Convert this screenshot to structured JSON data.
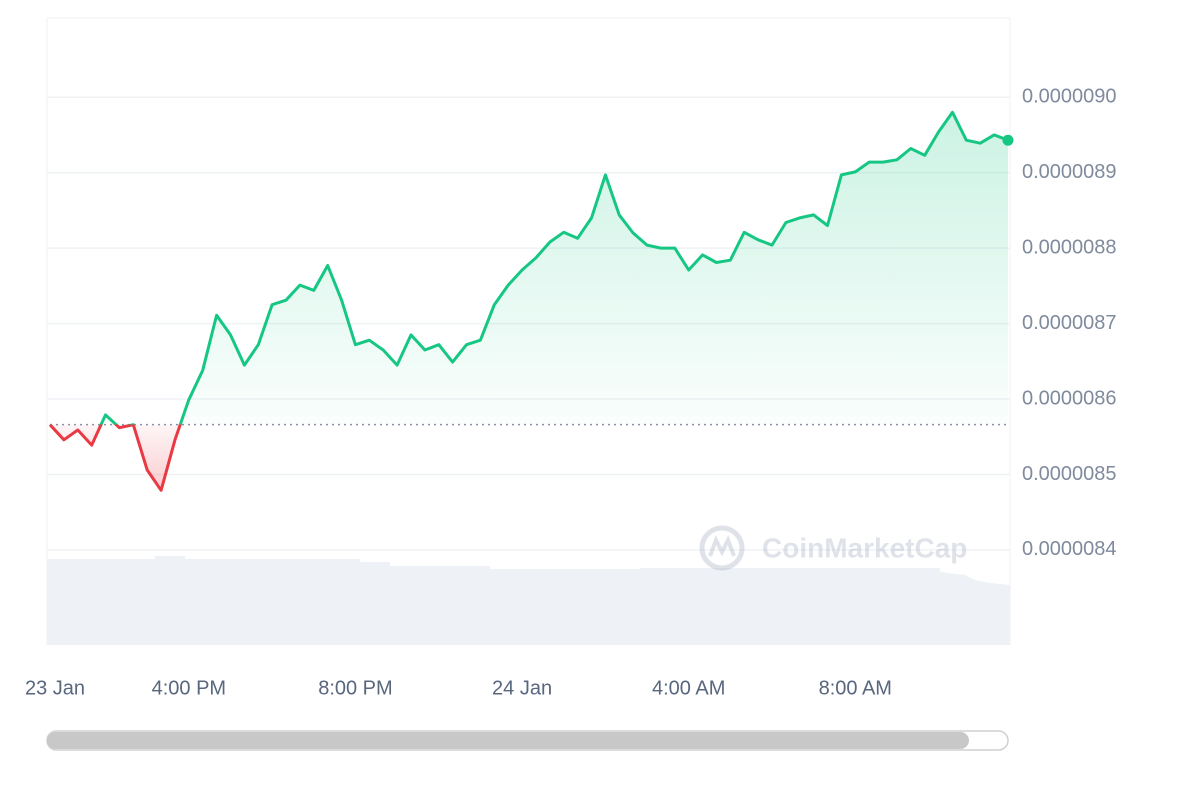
{
  "chart_data": {
    "type": "line",
    "watermark": "CoinMarketCap",
    "categories": [
      "23 Jan",
      null,
      null,
      null,
      null,
      null,
      null,
      null,
      null,
      null,
      "4:00 PM",
      null,
      null,
      null,
      null,
      null,
      null,
      null,
      null,
      null,
      null,
      null,
      "8:00 PM",
      null,
      null,
      null,
      null,
      null,
      null,
      null,
      null,
      null,
      null,
      null,
      "24 Jan",
      null,
      null,
      null,
      null,
      null,
      null,
      null,
      null,
      null,
      null,
      null,
      "4:00 AM",
      null,
      null,
      null,
      null,
      null,
      null,
      null,
      null,
      null,
      null,
      null,
      "8:00 AM",
      null,
      null,
      null,
      null,
      null,
      null,
      null,
      null,
      null,
      null,
      null
    ],
    "values": [
      8.566e-06,
      8.546e-06,
      8.559e-06,
      8.539e-06,
      8.579e-06,
      8.562e-06,
      8.566e-06,
      8.506e-06,
      8.479e-06,
      8.546e-06,
      8.599e-06,
      8.638e-06,
      8.711e-06,
      8.685e-06,
      8.645e-06,
      8.672e-06,
      8.725e-06,
      8.731e-06,
      8.751e-06,
      8.744e-06,
      8.777e-06,
      8.731e-06,
      8.672e-06,
      8.678e-06,
      8.665e-06,
      8.645e-06,
      8.685e-06,
      8.665e-06,
      8.672e-06,
      8.649e-06,
      8.672e-06,
      8.678e-06,
      8.725e-06,
      8.751e-06,
      8.771e-06,
      8.787e-06,
      8.808e-06,
      8.821e-06,
      8.813e-06,
      8.84e-06,
      8.897e-06,
      8.844e-06,
      8.82e-06,
      8.804e-06,
      8.8e-06,
      8.8e-06,
      8.771e-06,
      8.791e-06,
      8.781e-06,
      8.784e-06,
      8.821e-06,
      8.811e-06,
      8.804e-06,
      8.834e-06,
      8.84e-06,
      8.844e-06,
      8.83e-06,
      8.897e-06,
      8.901e-06,
      8.914e-06,
      8.914e-06,
      8.917e-06,
      8.932e-06,
      8.923e-06,
      8.954e-06,
      8.98e-06,
      8.943e-06,
      8.939e-06,
      8.95e-06,
      8.943e-06
    ],
    "baseline": 8.566e-06,
    "up_color": "#16c784",
    "down_color": "#ea3943",
    "ylim": [
      8.274e-06,
      9.105e-06
    ],
    "yticks": [
      {
        "value": 8.4e-06,
        "label": "0.0000084"
      },
      {
        "value": 8.5e-06,
        "label": "0.0000085"
      },
      {
        "value": 8.6e-06,
        "label": "0.0000086"
      },
      {
        "value": 8.7e-06,
        "label": "0.0000087"
      },
      {
        "value": 8.8e-06,
        "label": "0.0000088"
      },
      {
        "value": 8.9e-06,
        "label": "0.0000089"
      },
      {
        "value": 9e-06,
        "label": "0.0000090"
      }
    ],
    "grid": true
  }
}
